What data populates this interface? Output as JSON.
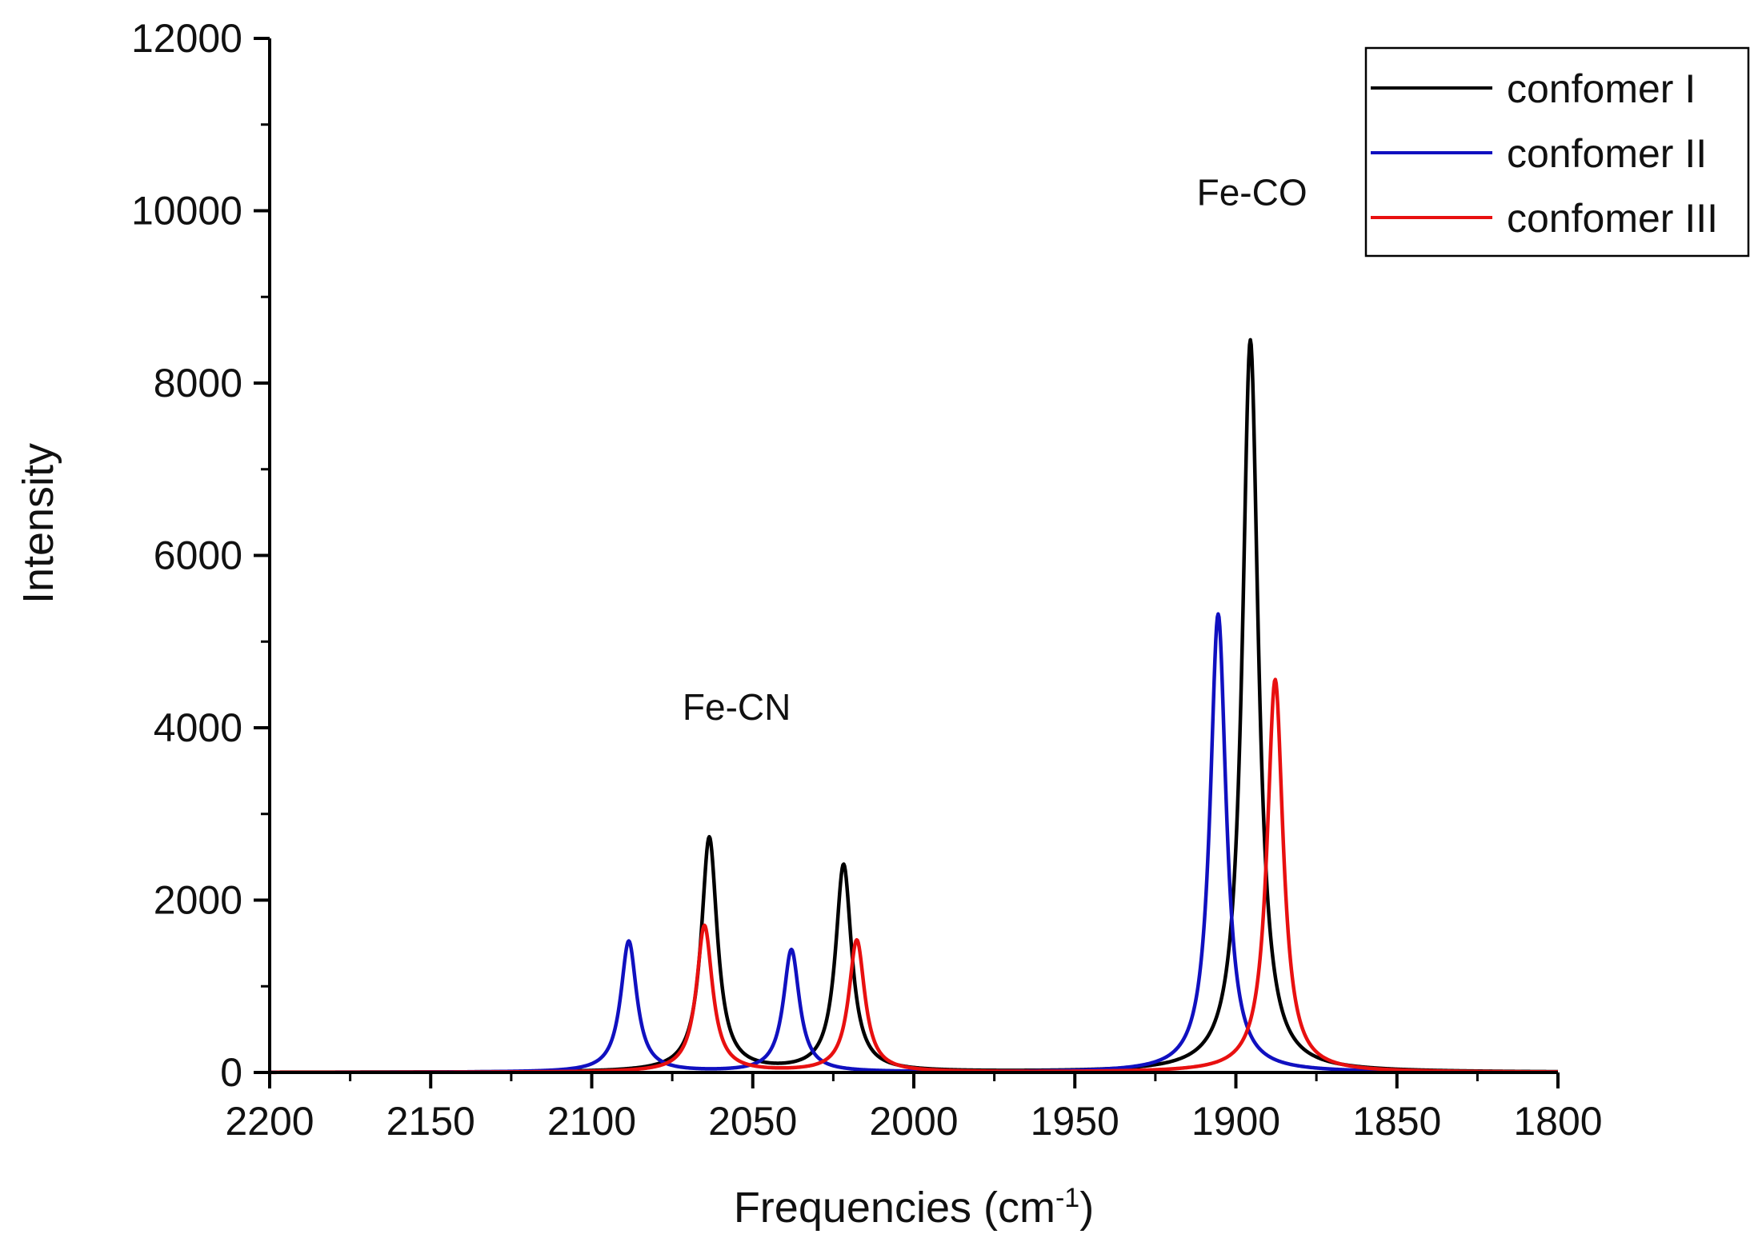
{
  "chart_data": {
    "type": "line",
    "title": "",
    "xlabel": "Frequencies (cm",
    "xlabel_sup": "-1",
    "xlabel_close": ")",
    "ylabel": "Intensity",
    "xlim": [
      2200,
      1800
    ],
    "ylim": [
      0,
      12000
    ],
    "x_reversed": true,
    "x_ticks": [
      2200,
      2150,
      2100,
      2050,
      2000,
      1950,
      1900,
      1850,
      1800
    ],
    "y_ticks": [
      0,
      2000,
      4000,
      6000,
      8000,
      10000,
      12000
    ],
    "grid": false,
    "legend_position": "top-right",
    "lineshape": "lorentzian",
    "annotations": [
      {
        "text": "Fe-CN",
        "x": 2055,
        "y": 4000
      },
      {
        "text": "Fe-CO",
        "x": 1895,
        "y": 9970
      }
    ],
    "series": [
      {
        "name": "confomer I",
        "color": "#000000",
        "hwhm": 3.0,
        "peaks": [
          {
            "x": 2063.5,
            "y": 2720
          },
          {
            "x": 2021.8,
            "y": 2400
          },
          {
            "x": 1895.5,
            "y": 8500
          }
        ]
      },
      {
        "name": "confomer II",
        "color": "#1010c0",
        "hwhm": 3.0,
        "peaks": [
          {
            "x": 2088.5,
            "y": 1520
          },
          {
            "x": 2038.0,
            "y": 1420
          },
          {
            "x": 1905.5,
            "y": 5320
          }
        ]
      },
      {
        "name": "confomer III",
        "color": "#e81010",
        "hwhm": 3.0,
        "peaks": [
          {
            "x": 2065.0,
            "y": 1700
          },
          {
            "x": 2017.7,
            "y": 1530
          },
          {
            "x": 1887.8,
            "y": 4560
          }
        ]
      }
    ]
  }
}
